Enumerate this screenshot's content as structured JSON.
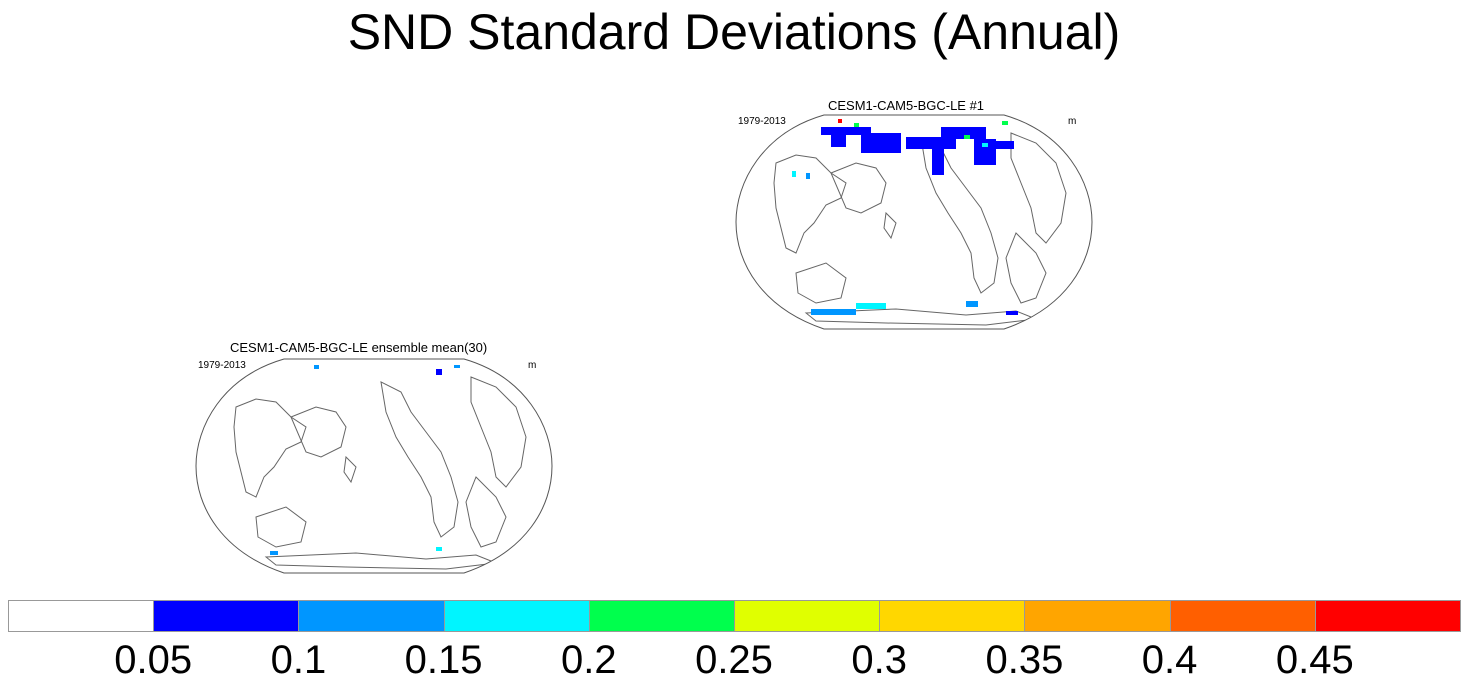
{
  "title": "SND Standard Deviations (Annual)",
  "panels": [
    {
      "title": "CESM1-CAM5-BGC-LE #1",
      "years": "1979-2013",
      "units": "m"
    },
    {
      "title": "CESM1-CAM5-BGC-LE ensemble mean(30)",
      "years": "1979-2013",
      "units": "m"
    }
  ],
  "colorbar": {
    "colors": [
      "#ffffff",
      "#0000ff",
      "#0096ff",
      "#00f5ff",
      "#00ff4d",
      "#e0ff00",
      "#ffd700",
      "#ffa500",
      "#ff5f00",
      "#ff0000"
    ],
    "labels": [
      "0.05",
      "0.1",
      "0.15",
      "0.2",
      "0.25",
      "0.3",
      "0.35",
      "0.4",
      "0.45"
    ]
  }
}
